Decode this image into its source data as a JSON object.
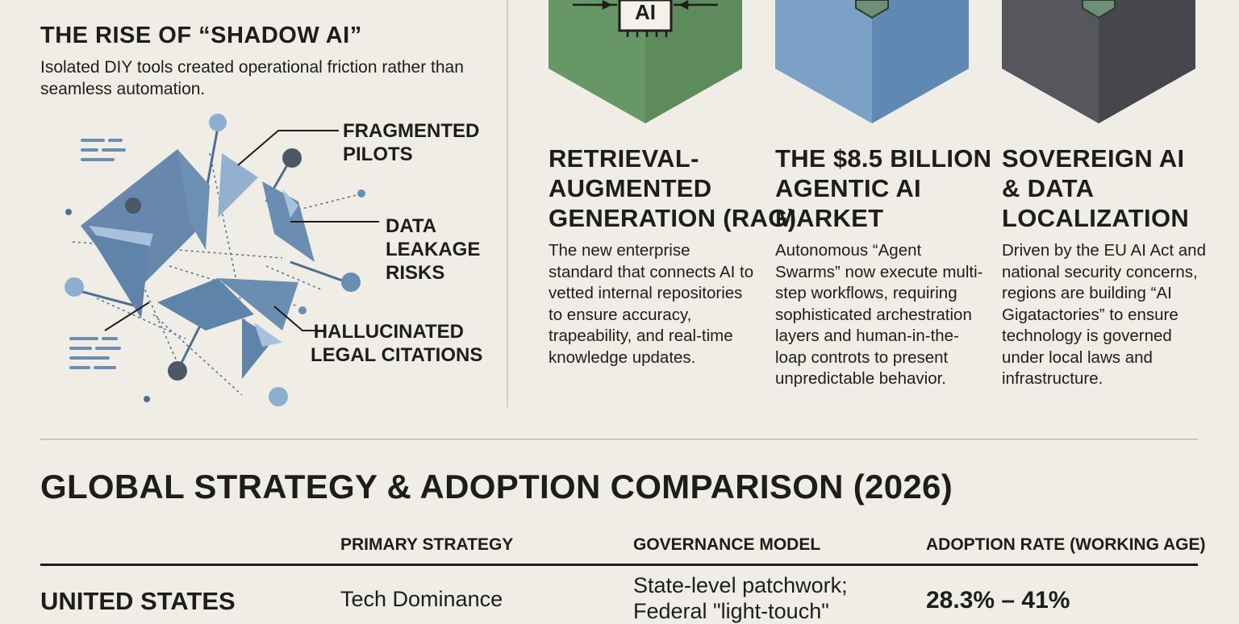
{
  "shadow_ai": {
    "title": "THE RISE OF “SHADOW AI”",
    "subtitle": "Isolated DIY tools created operational friction rather than seamless automation.",
    "callouts": {
      "fragmented": [
        "FRAGMENTED",
        "PILOTS"
      ],
      "leakage": [
        "DATA",
        "LEAKAGE",
        "RISKS"
      ],
      "hallucinated": [
        "HALLUCINATED",
        "LEGAL CITATIONS"
      ]
    }
  },
  "columns": [
    {
      "badge_text": "AI",
      "color": "#679766",
      "title": "RETRIEVAL-AUGMENTED GENERATION (RAG)",
      "title_lines": [
        "RETRIEVAL-",
        "AUGMENTED",
        "GENERATION (RAG)"
      ],
      "body": "The new enterprise standard that connects AI to vetted internal repositories to ensure accuracy, trapeability, and real-time knowledge updates."
    },
    {
      "color": "#6f96bd",
      "title": "THE $8.5 BILLION AGENTIC AI MARKET",
      "title_lines": [
        "THE $8.5 BILLION",
        "AGENTIC AI",
        "MARKET"
      ],
      "body": "Autonomous “Agent Swarms” now execute multi-step workflows, requiring sophisticated archestration layers and human-in-the-loap controts to present unpredictable behavior."
    },
    {
      "color": "#4e5056",
      "title": "SOVEREIGN AI & DATA LOCALIZATION",
      "title_lines": [
        "SOVEREIGN AI",
        "& DATA",
        "LOCALIZATION"
      ],
      "body": "Driven by the EU AI Act and national security concerns, regions are building “AI Gigatactories” to ensure technology is governed under local laws and infrastructure."
    }
  ],
  "comparison": {
    "title": "GLOBAL STRATEGY & ADOPTION COMPARISON (2026)",
    "headers": [
      "PRIMARY STRATEGY",
      "GOVERNANCE MODEL",
      "ADOPTION RATE (WORKING AGE)"
    ],
    "rows": [
      {
        "country": "UNITED STATES",
        "strategy": "Tech Dominance",
        "governance_lines": [
          "State-level patchwork;",
          "Federal \"light-touch\""
        ],
        "adoption": "28.3% – 41%"
      }
    ]
  }
}
